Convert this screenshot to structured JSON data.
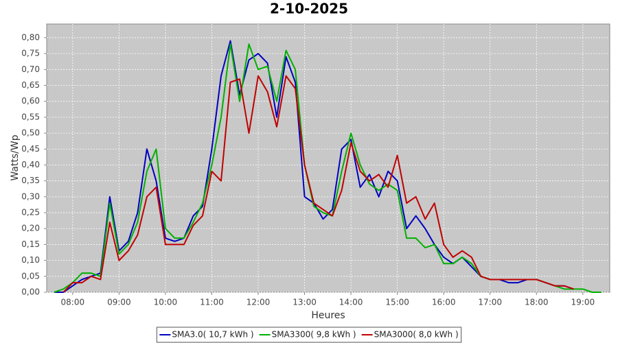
{
  "chart_data": {
    "type": "line",
    "title": "2-10-2025",
    "x_label": "Heures",
    "y_label": "Watts/Wp",
    "x": [
      7.6,
      7.8,
      8.0,
      8.2,
      8.4,
      8.6,
      8.8,
      9.0,
      9.2,
      9.4,
      9.6,
      9.8,
      10.0,
      10.2,
      10.4,
      10.6,
      10.8,
      11.0,
      11.2,
      11.4,
      11.6,
      11.8,
      12.0,
      12.2,
      12.4,
      12.6,
      12.8,
      13.0,
      13.2,
      13.4,
      13.6,
      13.8,
      14.0,
      14.2,
      14.4,
      14.6,
      14.8,
      15.0,
      15.2,
      15.4,
      15.6,
      15.8,
      16.0,
      16.2,
      16.4,
      16.6,
      16.8,
      17.0,
      17.2,
      17.4,
      17.6,
      17.8,
      18.0,
      18.2,
      18.4,
      18.6,
      18.8,
      19.0,
      19.2,
      19.4
    ],
    "series": [
      {
        "name": "SMA3.0( 10,7 kWh )",
        "color": "#0000c0",
        "values": [
          0,
          0,
          0.02,
          0.04,
          0.05,
          0.06,
          0.3,
          0.13,
          0.16,
          0.25,
          0.45,
          0.35,
          0.17,
          0.16,
          0.17,
          0.24,
          0.27,
          0.45,
          0.68,
          0.79,
          0.62,
          0.73,
          0.75,
          0.72,
          0.55,
          0.74,
          0.66,
          0.3,
          0.28,
          0.23,
          0.26,
          0.45,
          0.48,
          0.33,
          0.37,
          0.3,
          0.38,
          0.35,
          0.2,
          0.24,
          0.2,
          0.15,
          0.11,
          0.09,
          0.11,
          0.08,
          0.05,
          0.04,
          0.04,
          0.03,
          0.03,
          0.04,
          0.04,
          0.03,
          0.02,
          0.02,
          0.01,
          null,
          null,
          null
        ]
      },
      {
        "name": "SMA3300( 9,8 kWh )",
        "color": "#00b000",
        "values": [
          0,
          0.01,
          0.03,
          0.06,
          0.06,
          0.05,
          0.28,
          0.12,
          0.15,
          0.22,
          0.38,
          0.45,
          0.2,
          0.17,
          0.17,
          0.22,
          0.28,
          0.4,
          0.55,
          0.78,
          0.6,
          0.78,
          0.7,
          0.71,
          0.6,
          0.76,
          0.7,
          0.4,
          0.27,
          0.25,
          0.24,
          0.38,
          0.5,
          0.4,
          0.34,
          0.32,
          0.34,
          0.32,
          0.17,
          0.17,
          0.14,
          0.15,
          0.09,
          0.09,
          0.11,
          0.09,
          0.05,
          0.04,
          0.04,
          0.04,
          0.04,
          0.04,
          0.04,
          0.03,
          0.02,
          0.01,
          0.01,
          0.01,
          0,
          0
        ]
      },
      {
        "name": "SMA3000( 8,0 kWh )",
        "color": "#c00000",
        "values": [
          null,
          0,
          0.03,
          0.03,
          0.05,
          0.04,
          0.22,
          0.1,
          0.13,
          0.18,
          0.3,
          0.33,
          0.15,
          0.15,
          0.15,
          0.21,
          0.24,
          0.38,
          0.35,
          0.66,
          0.67,
          0.5,
          0.68,
          0.63,
          0.52,
          0.68,
          0.64,
          0.4,
          0.28,
          0.26,
          0.24,
          0.32,
          0.47,
          0.38,
          0.35,
          0.37,
          0.33,
          0.43,
          0.28,
          0.3,
          0.23,
          0.28,
          0.15,
          0.11,
          0.13,
          0.11,
          0.05,
          0.04,
          0.04,
          0.04,
          0.04,
          0.04,
          0.04,
          0.03,
          0.02,
          0.02,
          0.01,
          null,
          null,
          null
        ]
      }
    ],
    "xlim": [
      7.44,
      19.58
    ],
    "ylim": [
      0,
      0.843
    ],
    "xticks": [
      {
        "value": 8,
        "label": "08:00"
      },
      {
        "value": 9,
        "label": "09:00"
      },
      {
        "value": 10,
        "label": "10:00"
      },
      {
        "value": 11,
        "label": "11:00"
      },
      {
        "value": 12,
        "label": "12:00"
      },
      {
        "value": 13,
        "label": "13:00"
      },
      {
        "value": 14,
        "label": "14:00"
      },
      {
        "value": 15,
        "label": "15:00"
      },
      {
        "value": 16,
        "label": "16:00"
      },
      {
        "value": 17,
        "label": "17:00"
      },
      {
        "value": 18,
        "label": "18:00"
      },
      {
        "value": 19,
        "label": "19:00"
      }
    ],
    "yticks": [
      {
        "value": 0,
        "label": "0,00"
      },
      {
        "value": 0.05,
        "label": "0,05"
      },
      {
        "value": 0.1,
        "label": "0,10"
      },
      {
        "value": 0.15,
        "label": "0,15"
      },
      {
        "value": 0.2,
        "label": "0,20"
      },
      {
        "value": 0.25,
        "label": "0,25"
      },
      {
        "value": 0.3,
        "label": "0,30"
      },
      {
        "value": 0.35,
        "label": "0,35"
      },
      {
        "value": 0.4,
        "label": "0,40"
      },
      {
        "value": 0.45,
        "label": "0,45"
      },
      {
        "value": 0.5,
        "label": "0,50"
      },
      {
        "value": 0.55,
        "label": "0,55"
      },
      {
        "value": 0.6,
        "label": "0,60"
      },
      {
        "value": 0.65,
        "label": "0,65"
      },
      {
        "value": 0.7,
        "label": "0,70"
      },
      {
        "value": 0.75,
        "label": "0,75"
      },
      {
        "value": 0.8,
        "label": "0,80"
      }
    ],
    "grid": true,
    "legend": "bottom",
    "plot_background": "#c8c8c8"
  }
}
